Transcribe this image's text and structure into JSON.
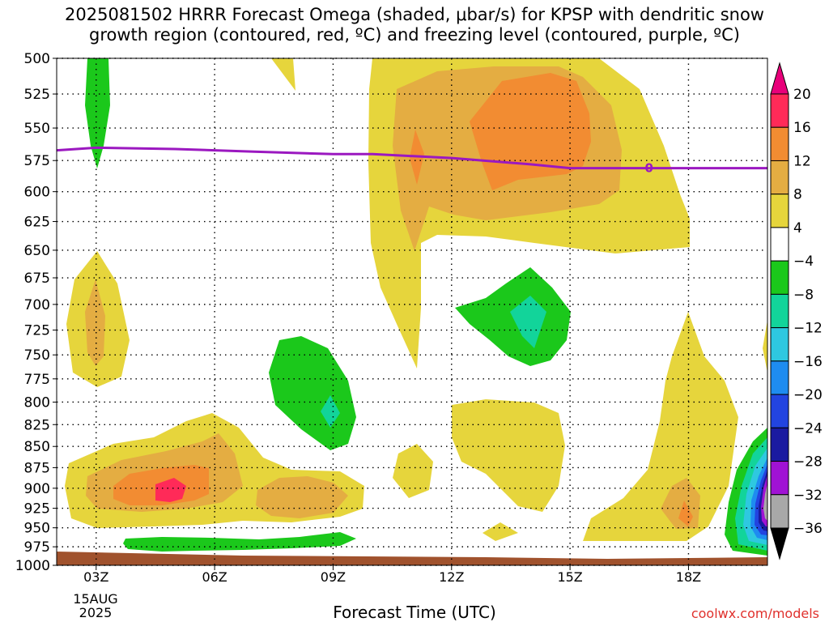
{
  "title": {
    "line1": "2025081502 HRRR Forecast Omega (shaded, μbar/s) for KPSP with dendritic snow",
    "line2": "growth region (contoured, red, ºC) and freezing level (contoured, purple, ºC)"
  },
  "chart_data": {
    "type": "heatmap",
    "xlabel": "Forecast Time (UTC)",
    "x_ticks": [
      "03Z",
      "06Z",
      "09Z",
      "12Z",
      "15Z",
      "18Z"
    ],
    "x_tick_hours": [
      3,
      6,
      9,
      12,
      15,
      18
    ],
    "xlim": [
      2.0,
      20.0
    ],
    "date_label": {
      "line1": "15AUG",
      "line2": "2025"
    },
    "ylabel": "",
    "y_ticks": [
      500,
      525,
      550,
      575,
      600,
      625,
      650,
      675,
      700,
      725,
      750,
      775,
      800,
      825,
      850,
      875,
      900,
      925,
      950,
      975,
      1000
    ],
    "ylim": [
      500,
      1000
    ],
    "y_scale": "log-pressure",
    "grid": true,
    "colorbar": {
      "levels": [
        20,
        16,
        12,
        8,
        4,
        -4,
        -8,
        -12,
        -16,
        -20,
        -24,
        -28,
        -32,
        -36
      ],
      "colors": [
        "#ff2a58",
        "#f28c32",
        "#e4ad42",
        "#e6d53c",
        "#ffffff",
        "#1bc81b",
        "#12d49a",
        "#2ec8e0",
        "#1e8cf0",
        "#2244e0",
        "#1a1aa0",
        "#a012d4",
        "#a8a8a8"
      ],
      "top_color": "#e8007a",
      "bottom_color": "#000000"
    },
    "freezing_level": {
      "label": "0",
      "color": "#9b18c0",
      "points": [
        [
          2.0,
          567
        ],
        [
          3.0,
          565
        ],
        [
          5.0,
          566
        ],
        [
          7.0,
          568
        ],
        [
          9.0,
          570
        ],
        [
          10.0,
          570
        ],
        [
          12.0,
          573
        ],
        [
          14.0,
          578
        ],
        [
          15.0,
          581
        ],
        [
          17.0,
          581
        ],
        [
          20.0,
          581
        ]
      ]
    },
    "ground_color": "#a0522d"
  },
  "credit": "coolwx.com/models"
}
